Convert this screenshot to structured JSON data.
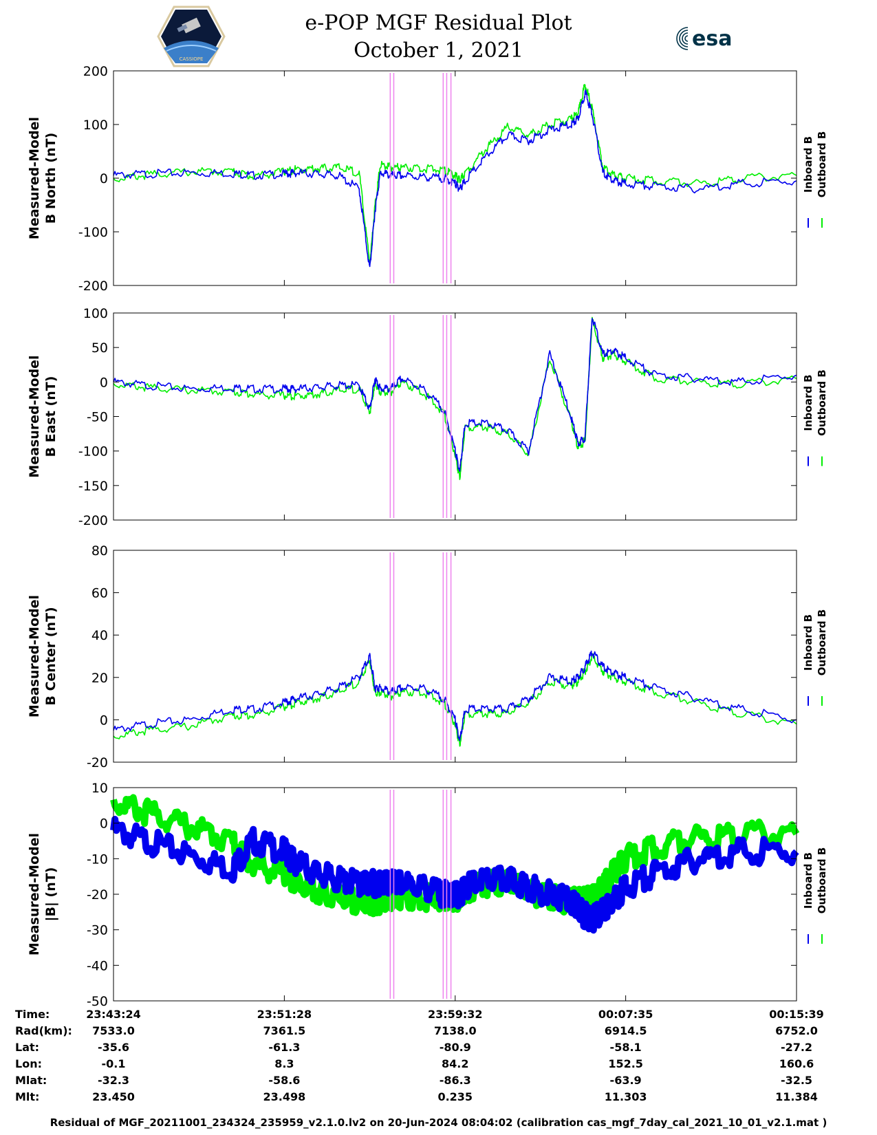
{
  "header": {
    "title_line1": "e-POP MGF Residual Plot",
    "title_line2": "October 1, 2021",
    "mission_logo_text": "CASSIOPE",
    "esa_logo_text": "esa"
  },
  "chart_data": [
    {
      "type": "line",
      "ylabel_line1": "Measured-Model",
      "ylabel_line2": "B North (nT)",
      "ylim": [
        -200,
        200
      ],
      "yticks": [
        200,
        100,
        0,
        -100,
        -200
      ],
      "legend": [
        "Inboard B",
        "Outboard B"
      ],
      "legend_placement": "right",
      "x": [
        "23:43:24",
        "23:45:00",
        "23:47:00",
        "23:49:00",
        "23:50:00",
        "23:51:28",
        "23:52:00",
        "23:53:00",
        "23:54:00",
        "23:55:00",
        "23:55:30",
        "23:55:45",
        "23:56:00",
        "23:56:30",
        "23:57:00",
        "23:58:00",
        "23:59:00",
        "23:59:32",
        "23:59:45",
        "00:00:00",
        "00:01:00",
        "00:02:00",
        "00:03:00",
        "00:04:00",
        "00:05:00",
        "00:05:20",
        "00:05:40",
        "00:06:00",
        "00:06:30",
        "00:07:00",
        "00:07:35",
        "00:09:00",
        "00:11:00",
        "00:13:00",
        "00:15:39"
      ],
      "series": [
        {
          "name": "Inboard B",
          "color": "#0000ee",
          "values": [
            5,
            8,
            10,
            9,
            5,
            8,
            10,
            8,
            5,
            -20,
            -170,
            -60,
            10,
            5,
            5,
            2,
            0,
            -10,
            -20,
            -5,
            40,
            80,
            70,
            90,
            100,
            110,
            160,
            120,
            10,
            -5,
            -10,
            -15,
            -20,
            -10,
            -5
          ]
        },
        {
          "name": "Outboard B",
          "color": "#00ee00",
          "values": [
            -2,
            6,
            12,
            13,
            3,
            12,
            16,
            18,
            20,
            10,
            -160,
            -50,
            25,
            20,
            20,
            18,
            15,
            5,
            -5,
            10,
            55,
            95,
            80,
            100,
            110,
            120,
            175,
            130,
            20,
            5,
            0,
            -5,
            -10,
            0,
            5
          ]
        }
      ]
    },
    {
      "type": "line",
      "ylabel_line1": "Measured-Model",
      "ylabel_line2": "B East (nT)",
      "ylim": [
        -200,
        100
      ],
      "yticks": [
        100,
        50,
        0,
        -50,
        -100,
        -150,
        -200
      ],
      "legend": [
        "Inboard B",
        "Outboard B"
      ],
      "legend_placement": "right",
      "x": [
        "23:43:24",
        "23:45:00",
        "23:47:00",
        "23:49:00",
        "23:50:00",
        "23:51:28",
        "23:52:00",
        "23:53:00",
        "23:54:00",
        "23:55:00",
        "23:55:30",
        "23:55:45",
        "23:56:00",
        "23:56:30",
        "23:57:00",
        "23:58:00",
        "23:59:00",
        "23:59:32",
        "23:59:45",
        "00:00:00",
        "00:01:00",
        "00:02:00",
        "00:03:00",
        "00:04:00",
        "00:05:00",
        "00:05:20",
        "00:05:40",
        "00:06:00",
        "00:06:30",
        "00:07:00",
        "00:07:35",
        "00:09:00",
        "00:11:00",
        "00:13:00",
        "00:15:39"
      ],
      "series": [
        {
          "name": "Inboard B",
          "color": "#0000ee",
          "values": [
            0,
            -5,
            -10,
            -8,
            -10,
            -10,
            -10,
            -8,
            -5,
            -5,
            -40,
            5,
            -10,
            -10,
            5,
            -10,
            -40,
            -100,
            -130,
            -60,
            -60,
            -70,
            -100,
            40,
            -50,
            -90,
            -80,
            95,
            40,
            45,
            35,
            10,
            5,
            0,
            10
          ]
        },
        {
          "name": "Outboard B",
          "color": "#00ee00",
          "values": [
            -3,
            -8,
            -12,
            -14,
            -18,
            -20,
            -20,
            -18,
            -12,
            -10,
            -45,
            0,
            -15,
            -15,
            0,
            -15,
            -45,
            -105,
            -140,
            -65,
            -65,
            -75,
            -105,
            35,
            -55,
            -95,
            -85,
            90,
            35,
            40,
            30,
            5,
            0,
            -3,
            5
          ]
        }
      ]
    },
    {
      "type": "line",
      "ylabel_line1": "Measured-Model",
      "ylabel_line2": "B Center (nT)",
      "ylim": [
        -20,
        80
      ],
      "yticks": [
        80,
        60,
        40,
        20,
        0,
        -20
      ],
      "legend": [
        "Inboard B",
        "Outboard B"
      ],
      "legend_placement": "right",
      "x": [
        "23:43:24",
        "23:45:00",
        "23:47:00",
        "23:49:00",
        "23:50:00",
        "23:51:28",
        "23:52:00",
        "23:53:00",
        "23:54:00",
        "23:55:00",
        "23:55:30",
        "23:55:45",
        "23:56:00",
        "23:56:30",
        "23:57:00",
        "23:58:00",
        "23:59:00",
        "23:59:32",
        "23:59:45",
        "00:00:00",
        "00:01:00",
        "00:02:00",
        "00:03:00",
        "00:04:00",
        "00:05:00",
        "00:05:20",
        "00:05:40",
        "00:06:00",
        "00:06:30",
        "00:07:00",
        "00:07:35",
        "00:09:00",
        "00:11:00",
        "00:13:00",
        "00:15:39"
      ],
      "series": [
        {
          "name": "Inboard B",
          "color": "#0000ee",
          "values": [
            -5,
            -2,
            0,
            5,
            5,
            8,
            10,
            12,
            15,
            20,
            30,
            15,
            15,
            13,
            15,
            15,
            10,
            0,
            -10,
            5,
            5,
            5,
            10,
            20,
            18,
            20,
            25,
            32,
            25,
            22,
            20,
            15,
            10,
            5,
            0
          ]
        },
        {
          "name": "Outboard B",
          "color": "#00ee00",
          "values": [
            -8,
            -5,
            -3,
            2,
            2,
            6,
            8,
            10,
            13,
            18,
            28,
            13,
            13,
            11,
            13,
            13,
            8,
            -2,
            -12,
            3,
            3,
            3,
            8,
            18,
            16,
            18,
            23,
            30,
            23,
            20,
            18,
            13,
            8,
            3,
            -2
          ]
        }
      ]
    },
    {
      "type": "area",
      "ylabel_line1": "Measured-Model",
      "ylabel_line2": "|B| (nT)",
      "ylim": [
        -50,
        10
      ],
      "yticks": [
        10,
        0,
        -10,
        -20,
        -30,
        -40,
        -50
      ],
      "legend": [
        "Inboard B",
        "Outboard B"
      ],
      "legend_placement": "right",
      "x": [
        "23:43:24",
        "23:45:00",
        "23:47:00",
        "23:49:00",
        "23:50:00",
        "23:51:28",
        "23:52:00",
        "23:53:00",
        "23:54:00",
        "23:55:00",
        "23:55:30",
        "23:55:45",
        "23:56:00",
        "23:56:30",
        "23:57:00",
        "23:58:00",
        "23:59:00",
        "23:59:32",
        "23:59:45",
        "00:00:00",
        "00:01:00",
        "00:02:00",
        "00:03:00",
        "00:04:00",
        "00:05:00",
        "00:05:20",
        "00:05:40",
        "00:06:00",
        "00:06:30",
        "00:07:00",
        "00:07:35",
        "00:09:00",
        "00:11:00",
        "00:13:00",
        "00:15:39"
      ],
      "series": [
        {
          "name": "Inboard B",
          "color": "#0000ee",
          "values": [
            -2,
            -5,
            -9,
            -13,
            -5,
            -8,
            -11,
            -14,
            -16,
            -17,
            -17,
            -17,
            -17,
            -17,
            -17,
            -18,
            -20,
            -20,
            -20,
            -18,
            -16,
            -16,
            -18,
            -20,
            -22,
            -24,
            -26,
            -27,
            -25,
            -22,
            -18,
            -14,
            -10,
            -8,
            -8
          ]
        },
        {
          "name": "Outboard B",
          "color": "#00ee00",
          "values": [
            6,
            3,
            -1,
            -5,
            -12,
            -14,
            -16,
            -19,
            -21,
            -22,
            -22,
            -22,
            -22,
            -21,
            -21,
            -21,
            -21,
            -21,
            -21,
            -19,
            -17,
            -17,
            -19,
            -21,
            -22,
            -22,
            -22,
            -21,
            -18,
            -14,
            -10,
            -7,
            -4,
            -3,
            -3
          ]
        }
      ]
    }
  ],
  "markers": {
    "color": "#ee82ee",
    "times": [
      "23:56:28",
      "23:56:38",
      "23:58:58",
      "23:59:08",
      "23:59:20"
    ]
  },
  "x_tick_labels": [
    "23:43:24",
    "23:51:28",
    "23:59:32",
    "00:07:35",
    "00:15:39"
  ],
  "table": {
    "row_labels": [
      "Time:",
      "Rad(km):",
      "Lat:",
      "Lon:",
      "Mlat:",
      "Mlt:"
    ],
    "columns": [
      [
        "23:43:24",
        "7533.0",
        "-35.6",
        "-0.1",
        "-32.3",
        "23.450"
      ],
      [
        "23:51:28",
        "7361.5",
        "-61.3",
        "8.3",
        "-58.6",
        "23.498"
      ],
      [
        "23:59:32",
        "7138.0",
        "-80.9",
        "84.2",
        "-86.3",
        "0.235"
      ],
      [
        "00:07:35",
        "6914.5",
        "-58.1",
        "152.5",
        "-63.9",
        "11.303"
      ],
      [
        "00:15:39",
        "6752.0",
        "-27.2",
        "160.6",
        "-32.5",
        "11.384"
      ]
    ]
  },
  "footer": "Residual of MGF_20211001_234324_235959_v2.1.0.lv2 on 20-Jun-2024 08:04:02 (calibration cas_mgf_7day_cal_2021_10_01_v2.1.mat )"
}
